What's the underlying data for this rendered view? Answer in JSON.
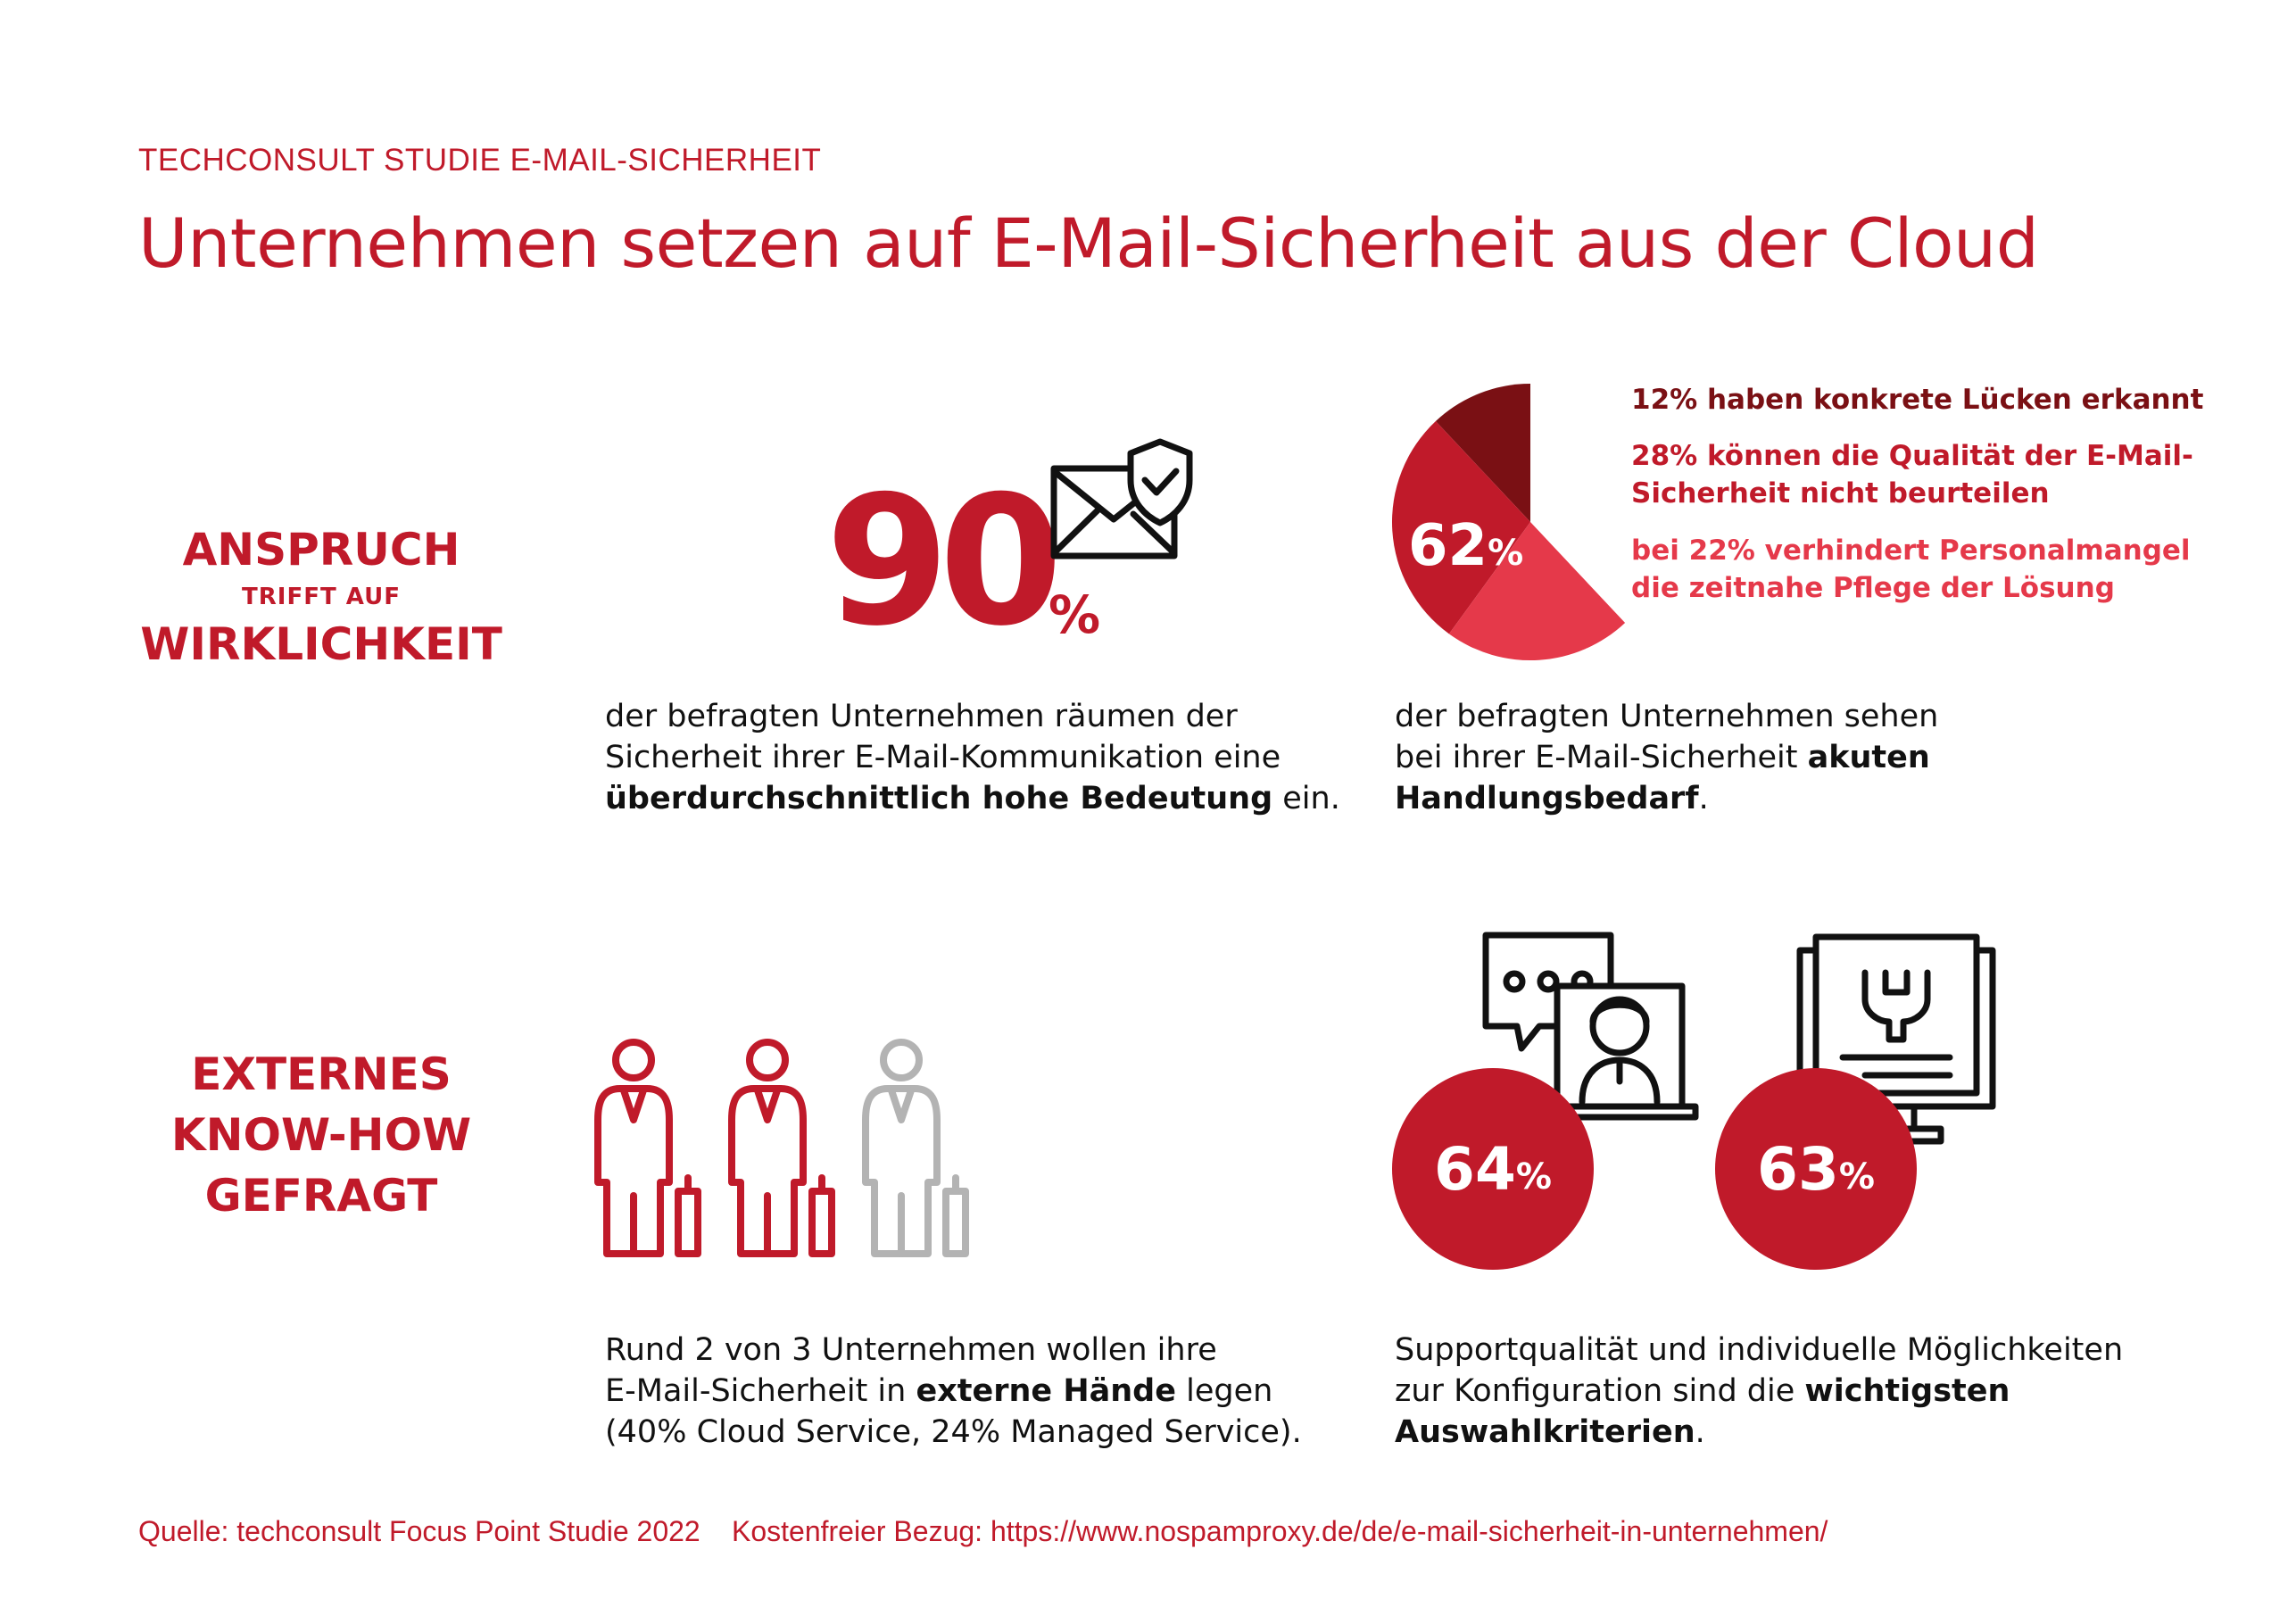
{
  "header": {
    "kicker": "TECHCONSULT STUDIE E-MAIL-SICHERHEIT",
    "title": "Unternehmen setzen auf E-Mail-Sicherheit aus der Cloud"
  },
  "sections": {
    "anspruch": {
      "line1": "ANSPRUCH",
      "line2": "TRIFFT AUF",
      "line3": "WIRKLICHKEIT"
    },
    "extern": {
      "line1": "EXTERNES",
      "line2": "KNOW-HOW",
      "line3": "GEFRAGT"
    }
  },
  "stat_importance": {
    "value": "90",
    "unit": "%",
    "text_line1": "der befragten Unternehmen räumen der",
    "text_line2": "Sicherheit ihrer E-Mail-Kommunikation eine",
    "text_bold": "überdurchschnittlich hohe Bedeutung",
    "text_end": " ein."
  },
  "stat_action": {
    "value": "62",
    "unit": "%",
    "text_line1": "der befragten Unternehmen sehen",
    "text_line2": "bei ihrer E-Mail-Sicherheit ",
    "text_bold1": "akuten",
    "text_bold2": "Handlungsbedarf",
    "text_end": "."
  },
  "legend": {
    "l1": "12% haben konkrete Lücken erkannt",
    "l2a": "28% können die Qualität der E-Mail-",
    "l2b": "Sicherheit nicht beurteilen",
    "l3a": "bei 22% verhindert Personalmangel",
    "l3b": "die zeitnahe Pflege der Lösung"
  },
  "stat_external": {
    "text_line1": "Rund 2 von 3 Unternehmen wollen ihre",
    "text_line2a": "E-Mail-Sicherheit in ",
    "text_bold": "externe Hände",
    "text_line2b": " legen",
    "text_line3": "(40% Cloud Service, 24% Managed Service)."
  },
  "stat_criteria": {
    "c1_value": "64",
    "c2_value": "63",
    "unit": "%",
    "text_line1": "Supportqualität und individuelle Möglichkeiten",
    "text_line2a": "zur Konfiguration sind die ",
    "text_bold1": "wichtigsten",
    "text_bold2": "Auswahlkriterien",
    "text_end": "."
  },
  "footer": {
    "source": "Quelle: techconsult Focus Point Studie 2022",
    "link": "Kostenfreier Bezug: https://www.nospamproxy.de/de/e-mail-sicherheit-in-unternehmen/"
  },
  "colors": {
    "accent": "#c01a2a",
    "dark_red": "#7a1014",
    "light_red": "#e5394a",
    "gray": "#b3b3b3"
  },
  "chart_data": [
    {
      "type": "pie",
      "categories": [
        "konkrete Lücken erkannt",
        "Qualität nicht beurteilbar",
        "Personalmangel"
      ],
      "values": [
        12,
        28,
        22
      ],
      "colors": [
        "#7a1014",
        "#c01a2a",
        "#e5394a"
      ],
      "total_label": "62%",
      "full_circle": 100
    },
    {
      "type": "pictogram",
      "filled": 2,
      "total": 3
    }
  ]
}
